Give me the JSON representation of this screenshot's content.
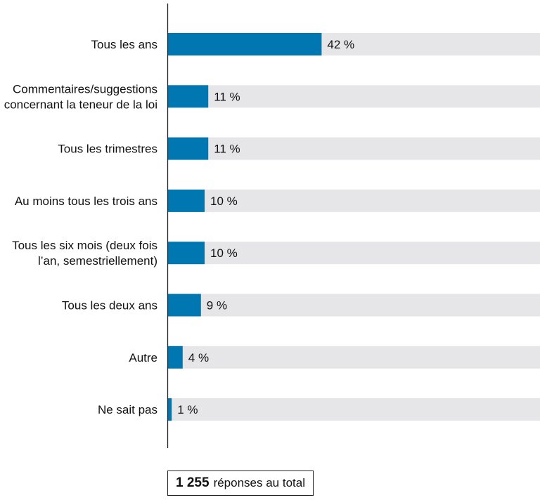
{
  "chart_data": {
    "type": "bar",
    "orientation": "horizontal",
    "categories": [
      [
        "Tous les ans"
      ],
      [
        "Commentaires/suggestions",
        "concernant la teneur de la loi"
      ],
      [
        "Tous les trimestres"
      ],
      [
        "Au moins tous les trois ans"
      ],
      [
        "Tous les six mois (deux fois",
        "l’an, semestriellement)"
      ],
      [
        "Tous les deux ans"
      ],
      [
        "Autre"
      ],
      [
        "Ne sait pas"
      ]
    ],
    "values": [
      42,
      11,
      11,
      10,
      10,
      9,
      4,
      1
    ],
    "value_labels": [
      "42 %",
      "11 %",
      "11 %",
      "10 %",
      "10 %",
      "9 %",
      "4 %",
      "1 %"
    ],
    "xlim": [
      0,
      100
    ],
    "colors": {
      "bar": "#0077b0",
      "track": "#e6e6e8",
      "axis": "#222222"
    }
  },
  "total": {
    "number": "1 255",
    "text": "réponses au total"
  }
}
